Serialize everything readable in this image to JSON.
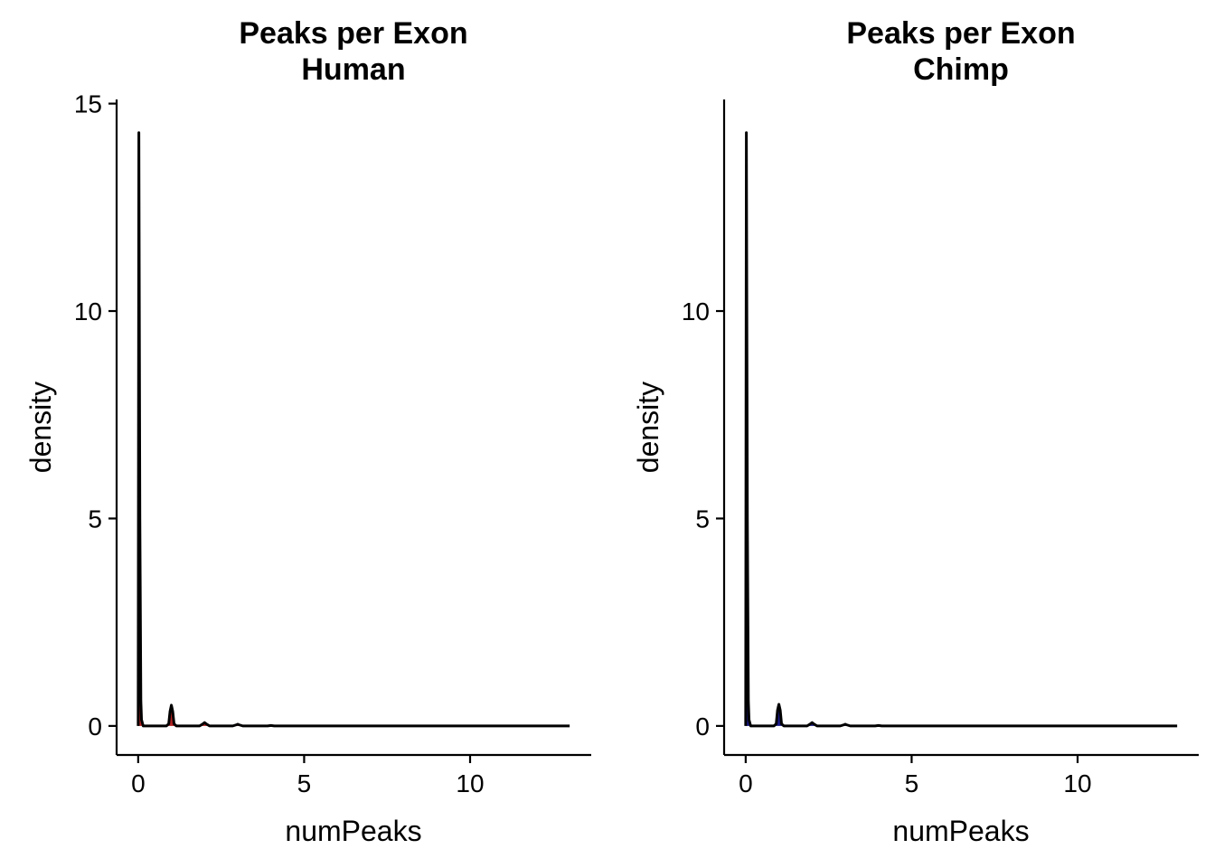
{
  "chart_data": [
    {
      "type": "area",
      "title_lines": [
        "Peaks per Exon",
        "Human"
      ],
      "xlabel": "numPeaks",
      "ylabel": "density",
      "xlim": [
        -0.65,
        13.65
      ],
      "ylim": [
        -0.7,
        15.1
      ],
      "xticks": [
        0,
        5,
        10
      ],
      "yticks": [
        0,
        5,
        10,
        15
      ],
      "fill_color": "#b22222",
      "line_color": "#000000",
      "grid": false,
      "series": [
        {
          "x": [
            0,
            0.02,
            0.05,
            0.08,
            0.1,
            0.15,
            0.85,
            0.92,
            0.96,
            1,
            1.04,
            1.08,
            1.15,
            1.85,
            1.95,
            2,
            2.05,
            2.15,
            2.85,
            2.97,
            3,
            3.03,
            3.15,
            3.9,
            4,
            4.1,
            13
          ],
          "y": [
            0,
            14.3,
            5.0,
            0.6,
            0.15,
            0,
            0,
            0.05,
            0.35,
            0.5,
            0.35,
            0.05,
            0,
            0,
            0.05,
            0.08,
            0.05,
            0,
            0,
            0.03,
            0.04,
            0.03,
            0,
            0,
            0.01,
            0,
            0
          ]
        }
      ]
    },
    {
      "type": "area",
      "title_lines": [
        "Peaks per Exon",
        "Chimp"
      ],
      "xlabel": "numPeaks",
      "ylabel": "density",
      "xlim": [
        -0.65,
        13.65
      ],
      "ylim": [
        -0.7,
        15.1
      ],
      "xticks": [
        0,
        5,
        10
      ],
      "yticks": [
        0,
        5,
        10
      ],
      "fill_color": "#1a1a8c",
      "line_color": "#000000",
      "grid": false,
      "series": [
        {
          "x": [
            0,
            0.02,
            0.05,
            0.08,
            0.1,
            0.15,
            0.85,
            0.92,
            0.96,
            1,
            1.04,
            1.08,
            1.15,
            1.85,
            1.95,
            2,
            2.05,
            2.15,
            2.85,
            2.97,
            3,
            3.03,
            3.15,
            3.9,
            4,
            4.1,
            13
          ],
          "y": [
            0,
            14.3,
            5.0,
            0.6,
            0.15,
            0,
            0,
            0.05,
            0.38,
            0.52,
            0.38,
            0.05,
            0,
            0,
            0.05,
            0.08,
            0.05,
            0,
            0,
            0.03,
            0.04,
            0.03,
            0,
            0,
            0.01,
            0,
            0
          ]
        }
      ]
    }
  ]
}
